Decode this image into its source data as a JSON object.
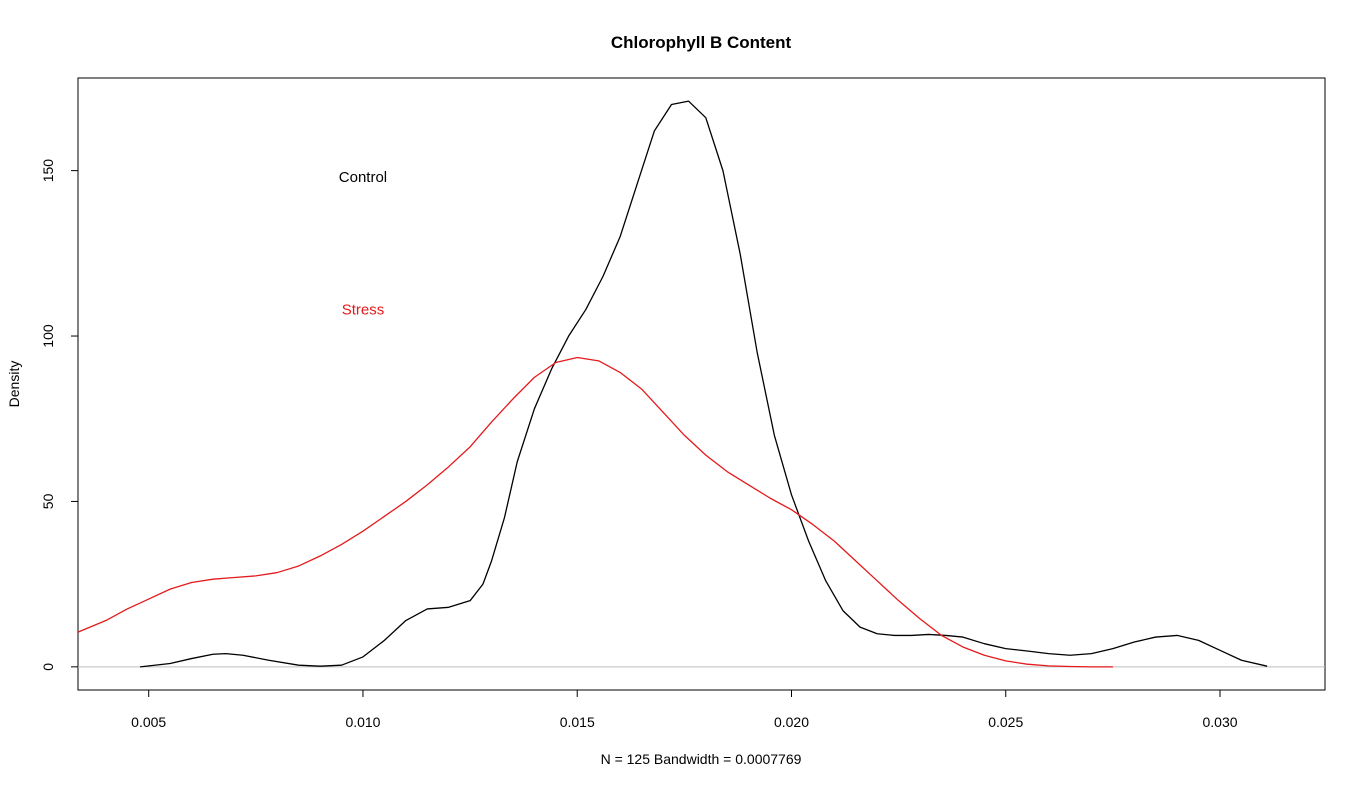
{
  "chart_data": {
    "type": "line",
    "title": "Chlorophyll B Content",
    "xlabel": "N = 125   Bandwidth = 0.0007769",
    "ylabel": "Density",
    "xlim": [
      0.00335,
      0.03245
    ],
    "ylim": [
      -7,
      178
    ],
    "x_ticks": [
      0.005,
      0.01,
      0.015,
      0.02,
      0.025,
      0.03
    ],
    "x_tick_labels": [
      "0.005",
      "0.010",
      "0.015",
      "0.020",
      "0.025",
      "0.030"
    ],
    "y_ticks": [
      0,
      50,
      100,
      150
    ],
    "y_tick_labels": [
      "0",
      "50",
      "100",
      "150"
    ],
    "baseline": 0,
    "grid": false,
    "annotations": [
      {
        "text": "Control",
        "color": "#000000",
        "x": 0.01,
        "y": 148
      },
      {
        "text": "Stress",
        "color": "#e41a1c",
        "x": 0.01,
        "y": 108
      }
    ],
    "series": [
      {
        "name": "Control",
        "color": "#000000",
        "x": [
          0.0048,
          0.0055,
          0.006,
          0.0065,
          0.0068,
          0.0072,
          0.0078,
          0.0085,
          0.009,
          0.0095,
          0.01,
          0.0105,
          0.011,
          0.0115,
          0.012,
          0.0125,
          0.0128,
          0.013,
          0.0133,
          0.0136,
          0.014,
          0.0144,
          0.0148,
          0.0152,
          0.0156,
          0.016,
          0.0164,
          0.0168,
          0.0172,
          0.0176,
          0.018,
          0.0184,
          0.0188,
          0.0192,
          0.0196,
          0.02,
          0.0204,
          0.0208,
          0.0212,
          0.0216,
          0.022,
          0.0224,
          0.0228,
          0.0232,
          0.0236,
          0.024,
          0.0245,
          0.025,
          0.0255,
          0.026,
          0.0265,
          0.027,
          0.0275,
          0.028,
          0.0285,
          0.029,
          0.0295,
          0.03,
          0.0305,
          0.0311
        ],
        "y": [
          0,
          1,
          2.5,
          3.8,
          4,
          3.5,
          2,
          0.5,
          0.2,
          0.5,
          3,
          8,
          14,
          17.5,
          18,
          20,
          25,
          32,
          45,
          62,
          78,
          90,
          100,
          108,
          118,
          130,
          146,
          162,
          170,
          171,
          166,
          150,
          125,
          95,
          70,
          52,
          38,
          26,
          17,
          12,
          10,
          9.5,
          9.5,
          9.8,
          9.5,
          9,
          7,
          5.5,
          4.8,
          4,
          3.5,
          4,
          5.5,
          7.5,
          9,
          9.5,
          8,
          5,
          2,
          0.2
        ]
      },
      {
        "name": "Stress",
        "color": "#e41a1c",
        "x": [
          0.00335,
          0.004,
          0.0045,
          0.005,
          0.0055,
          0.006,
          0.0065,
          0.007,
          0.0075,
          0.008,
          0.0085,
          0.009,
          0.0095,
          0.01,
          0.0105,
          0.011,
          0.0115,
          0.012,
          0.0125,
          0.013,
          0.0135,
          0.014,
          0.0145,
          0.015,
          0.0155,
          0.016,
          0.0165,
          0.017,
          0.0175,
          0.018,
          0.0185,
          0.019,
          0.0195,
          0.02,
          0.0205,
          0.021,
          0.0215,
          0.022,
          0.0225,
          0.023,
          0.0235,
          0.024,
          0.0245,
          0.025,
          0.0255,
          0.026,
          0.0265,
          0.027,
          0.0275
        ],
        "y": [
          10.5,
          14,
          17.5,
          20.5,
          23.5,
          25.5,
          26.5,
          27,
          27.5,
          28.5,
          30.5,
          33.5,
          37,
          41,
          45.5,
          50,
          55,
          60.5,
          66.5,
          74,
          81,
          87.5,
          92,
          93.5,
          92.5,
          89,
          84,
          77,
          70,
          64,
          59,
          55,
          51,
          47.5,
          43,
          38,
          32,
          26,
          20,
          14.5,
          9.5,
          6,
          3.5,
          1.8,
          0.8,
          0.3,
          0.1,
          0,
          0
        ]
      }
    ]
  }
}
